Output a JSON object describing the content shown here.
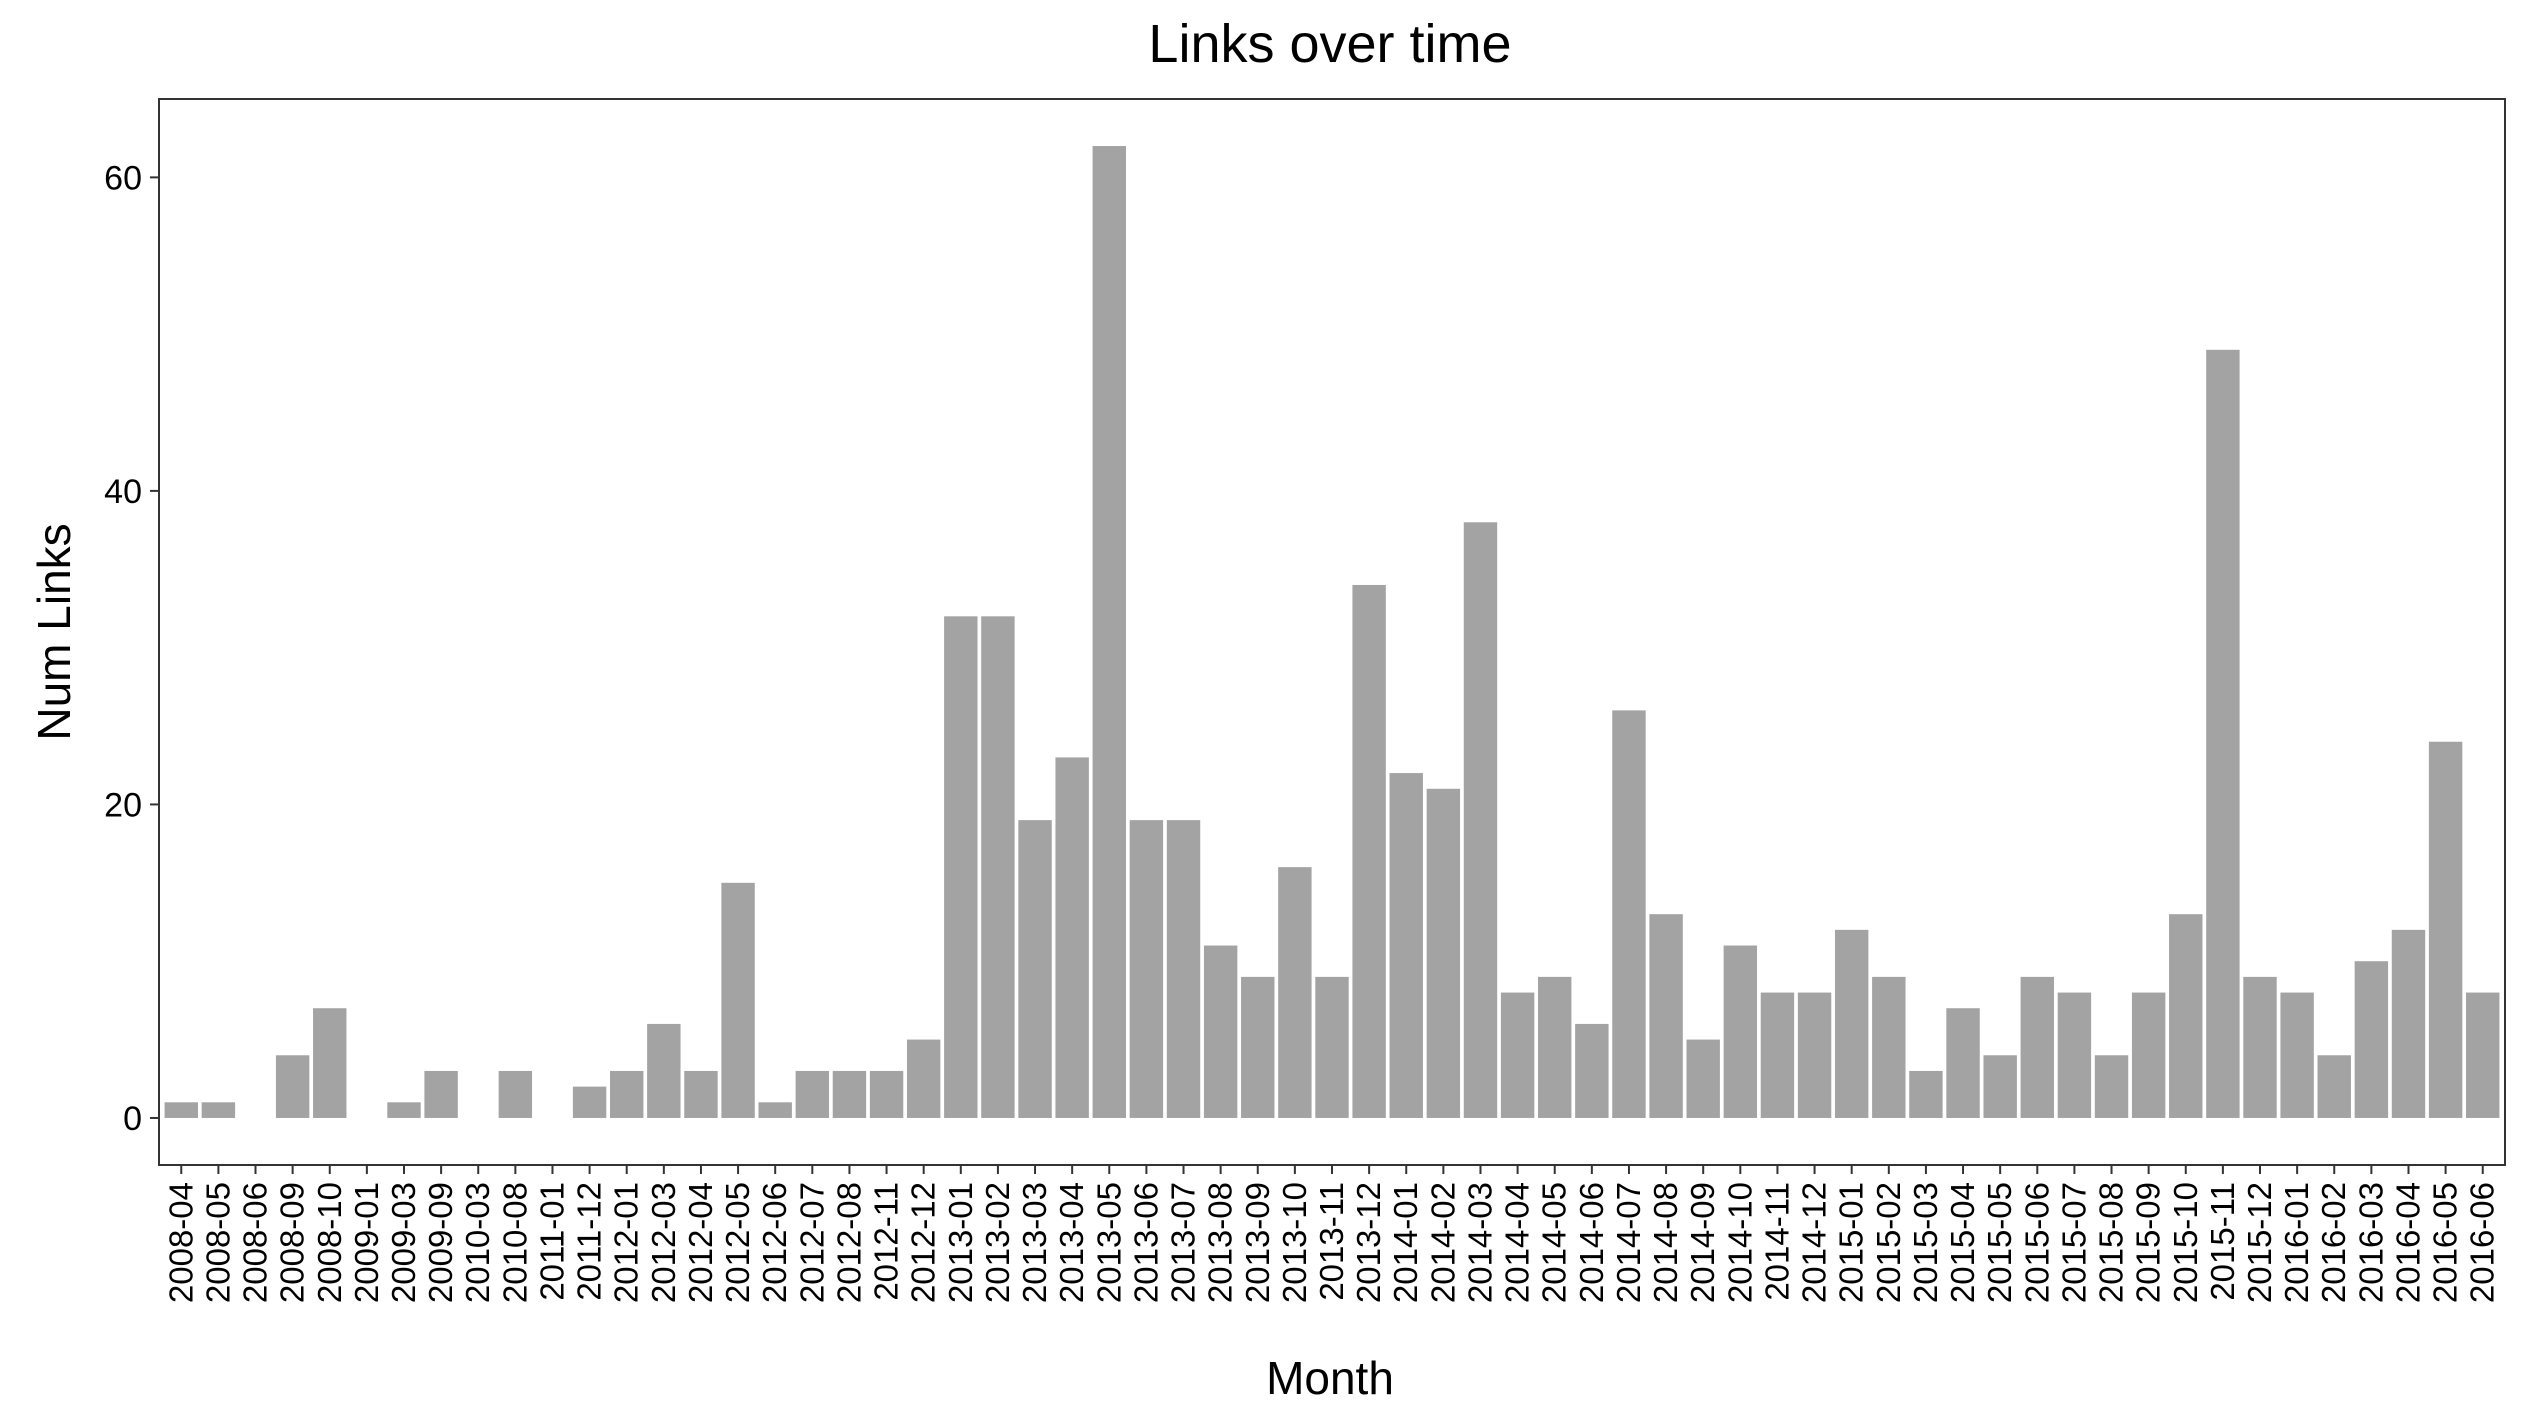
{
  "chart_data": {
    "type": "bar",
    "title": "Links over time",
    "xlabel": "Month",
    "ylabel": "Num Links",
    "ylim": [
      -3,
      65
    ],
    "yticks": [
      0,
      20,
      40,
      60
    ],
    "grid": false,
    "bar_color": "#a3a3a3",
    "categories": [
      "2008-04",
      "2008-05",
      "2008-06",
      "2008-09",
      "2008-10",
      "2009-01",
      "2009-03",
      "2009-09",
      "2010-03",
      "2010-08",
      "2011-01",
      "2011-12",
      "2012-01",
      "2012-03",
      "2012-04",
      "2012-05",
      "2012-06",
      "2012-07",
      "2012-08",
      "2012-11",
      "2012-12",
      "2013-01",
      "2013-02",
      "2013-03",
      "2013-04",
      "2013-05",
      "2013-06",
      "2013-07",
      "2013-08",
      "2013-09",
      "2013-10",
      "2013-11",
      "2013-12",
      "2014-01",
      "2014-02",
      "2014-03",
      "2014-04",
      "2014-05",
      "2014-06",
      "2014-07",
      "2014-08",
      "2014-09",
      "2014-10",
      "2014-11",
      "2014-12",
      "2015-01",
      "2015-02",
      "2015-03",
      "2015-04",
      "2015-05",
      "2015-06",
      "2015-07",
      "2015-08",
      "2015-09",
      "2015-10",
      "2015-11",
      "2015-12",
      "2016-01",
      "2016-02",
      "2016-03",
      "2016-04",
      "2016-05",
      "2016-06"
    ],
    "values": [
      1,
      1,
      0,
      4,
      7,
      0,
      1,
      3,
      0,
      3,
      0,
      2,
      3,
      6,
      3,
      15,
      1,
      3,
      3,
      3,
      5,
      32,
      32,
      19,
      23,
      62,
      19,
      19,
      11,
      9,
      16,
      9,
      34,
      22,
      21,
      38,
      8,
      9,
      6,
      26,
      13,
      5,
      11,
      8,
      8,
      12,
      9,
      3,
      7,
      4,
      9,
      8,
      4,
      8,
      13,
      49,
      9,
      8,
      4,
      10,
      12,
      24,
      8
    ]
  }
}
